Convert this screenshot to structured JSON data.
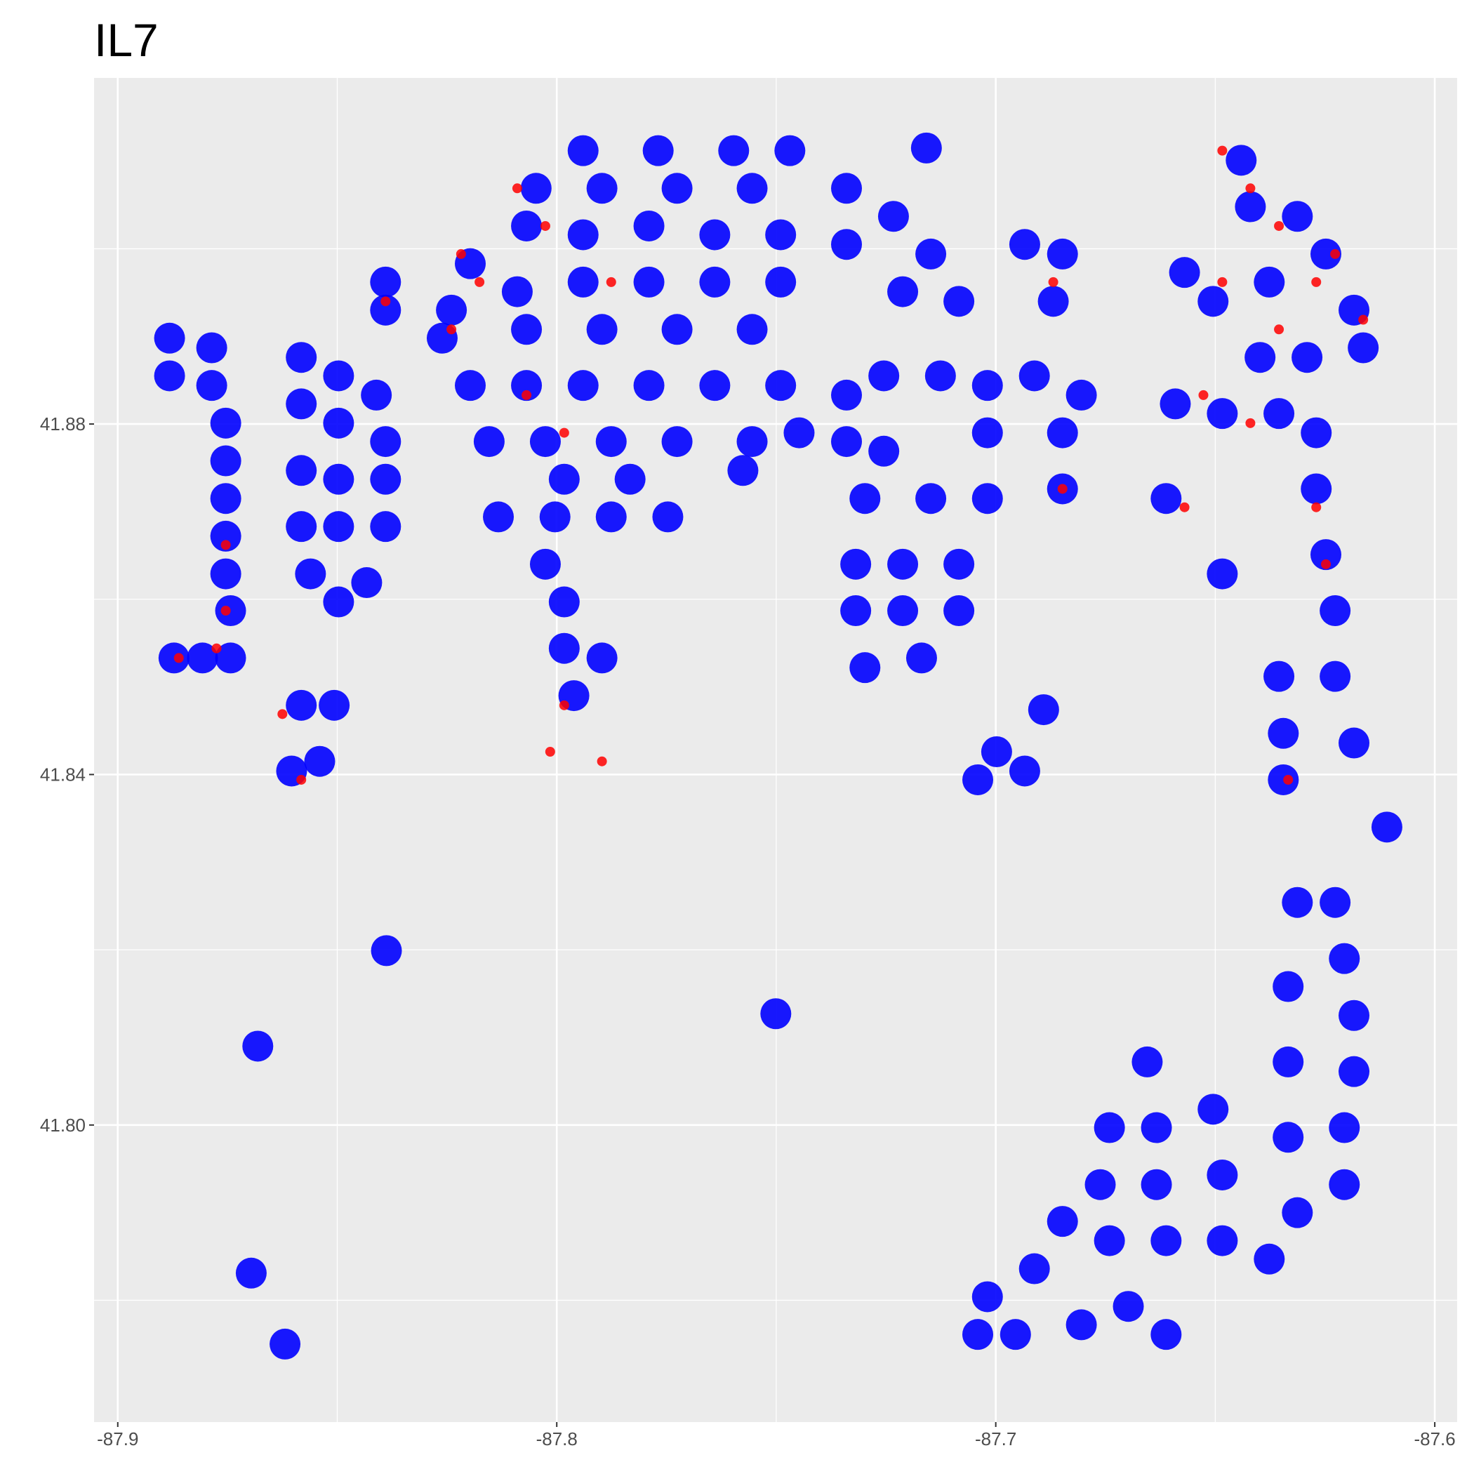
{
  "chart_data": {
    "type": "scatter",
    "title": "IL7",
    "xlim": [
      -87.9054,
      -87.5949
    ],
    "ylim": [
      41.7661,
      41.9195
    ],
    "xticks": [
      -87.9,
      -87.8,
      -87.7,
      -87.6
    ],
    "yticks": [
      {
        "value": 41.8,
        "label": "41.80"
      },
      41.84,
      41.88
    ],
    "minor_xticks": [
      -87.85,
      -87.75,
      -87.65
    ],
    "minor_yticks": [
      41.78,
      41.82,
      41.86,
      41.9
    ],
    "grid": true,
    "series": [
      {
        "color": "#0000ff",
        "x": [
          -87.8882,
          -87.8882,
          -87.8786,
          -87.8786,
          -87.8754,
          -87.8754,
          -87.8754,
          -87.8754,
          -87.8754,
          -87.8743,
          -87.8743,
          -87.8872,
          -87.8807,
          -87.8582,
          -87.8497,
          -87.8411,
          -87.8582,
          -87.8497,
          -87.839,
          -87.8582,
          -87.8497,
          -87.839,
          -87.8582,
          -87.8497,
          -87.839,
          -87.8561,
          -87.8497,
          -87.8433,
          -87.839,
          -87.839,
          -87.8582,
          -87.8507,
          -87.8604,
          -87.854,
          -87.794,
          -87.7769,
          -87.7597,
          -87.7469,
          -87.8047,
          -87.7897,
          -87.7726,
          -87.7555,
          -87.8197,
          -87.8069,
          -87.794,
          -87.779,
          -87.764,
          -87.749,
          -87.824,
          -87.809,
          -87.794,
          -87.779,
          -87.764,
          -87.749,
          -87.8261,
          -87.8069,
          -87.7897,
          -87.7726,
          -87.7555,
          -87.8197,
          -87.8069,
          -87.794,
          -87.779,
          -87.764,
          -87.749,
          -87.8154,
          -87.8026,
          -87.7876,
          -87.7726,
          -87.7555,
          -87.7448,
          -87.7983,
          -87.7833,
          -87.7576,
          -87.8133,
          -87.8004,
          -87.7876,
          -87.7747,
          -87.8026,
          -87.7983,
          -87.7983,
          -87.7897,
          -87.7961,
          -87.734,
          -87.7233,
          -87.7148,
          -87.734,
          -87.7212,
          -87.7084,
          -87.734,
          -87.7255,
          -87.7126,
          -87.7019,
          -87.6912,
          -87.6805,
          -87.7019,
          -87.6848,
          -87.734,
          -87.7255,
          -87.7298,
          -87.7148,
          -87.7019,
          -87.7319,
          -87.7212,
          -87.7084,
          -87.7319,
          -87.7212,
          -87.7084,
          -87.7298,
          -87.7169,
          -87.6934,
          -87.6848,
          -87.6869,
          -87.6848,
          -87.6441,
          -87.642,
          -87.6313,
          -87.6248,
          -87.6377,
          -87.6184,
          -87.657,
          -87.6505,
          -87.6398,
          -87.6291,
          -87.6163,
          -87.6591,
          -87.6484,
          -87.6355,
          -87.627,
          -87.6612,
          -87.6484,
          -87.627,
          -87.6248,
          -87.6227,
          -87.6355,
          -87.6345,
          -87.6345,
          -87.6227,
          -87.6184,
          -87.6109,
          -87.6313,
          -87.6227,
          -87.6334,
          -87.6206,
          -87.6184,
          -87.6184,
          -87.6206,
          -87.6206,
          -87.6334,
          -87.6334,
          -87.6313,
          -87.6655,
          -87.6741,
          -87.6634,
          -87.6505,
          -87.6762,
          -87.6634,
          -87.6484,
          -87.6741,
          -87.6612,
          -87.6484,
          -87.6377,
          -87.6698,
          -87.6612,
          -87.6805,
          -87.6912,
          -87.7019,
          -87.7041,
          -87.6955,
          -87.6848,
          -87.8388,
          -87.7501,
          -87.8696,
          -87.8619,
          -87.8681,
          -87.7158,
          -87.6934,
          -87.6998,
          -87.7041,
          -87.6891
        ],
        "y": [
          41.8898,
          41.8855,
          41.8887,
          41.8844,
          41.8801,
          41.8758,
          41.8715,
          41.8672,
          41.8629,
          41.8587,
          41.8533,
          41.8533,
          41.8533,
          41.8876,
          41.8855,
          41.8833,
          41.8823,
          41.8801,
          41.878,
          41.8747,
          41.8737,
          41.8737,
          41.8683,
          41.8683,
          41.8683,
          41.8629,
          41.8597,
          41.8619,
          41.8962,
          41.893,
          41.8479,
          41.8479,
          41.8404,
          41.8415,
          41.9112,
          41.9112,
          41.9112,
          41.9112,
          41.9069,
          41.9069,
          41.9069,
          41.9069,
          41.8983,
          41.9026,
          41.9016,
          41.9026,
          41.9016,
          41.9016,
          41.893,
          41.8951,
          41.8962,
          41.8962,
          41.8962,
          41.8962,
          41.8898,
          41.8908,
          41.8908,
          41.8908,
          41.8908,
          41.8844,
          41.8844,
          41.8844,
          41.8844,
          41.8844,
          41.8844,
          41.878,
          41.878,
          41.878,
          41.878,
          41.878,
          41.879,
          41.8737,
          41.8737,
          41.8747,
          41.8694,
          41.8694,
          41.8694,
          41.8694,
          41.864,
          41.8597,
          41.8544,
          41.8533,
          41.849,
          41.9069,
          41.9037,
          41.8994,
          41.9005,
          41.8951,
          41.894,
          41.8833,
          41.8855,
          41.8855,
          41.8844,
          41.8855,
          41.8833,
          41.879,
          41.879,
          41.878,
          41.8769,
          41.8715,
          41.8715,
          41.8715,
          41.864,
          41.864,
          41.864,
          41.8587,
          41.8587,
          41.8587,
          41.8522,
          41.8533,
          41.9005,
          41.8994,
          41.894,
          41.8726,
          41.9101,
          41.9048,
          41.9037,
          41.8994,
          41.8962,
          41.893,
          41.8973,
          41.894,
          41.8876,
          41.8876,
          41.8887,
          41.8823,
          41.8812,
          41.8812,
          41.879,
          41.8715,
          41.8629,
          41.8726,
          41.8651,
          41.8587,
          41.8512,
          41.8447,
          41.8394,
          41.8512,
          41.8436,
          41.834,
          41.8254,
          41.8254,
          41.8158,
          41.819,
          41.8125,
          41.8061,
          41.7997,
          41.7932,
          41.8072,
          41.7986,
          41.79,
          41.8072,
          41.7997,
          41.7997,
          41.8018,
          41.7932,
          41.7932,
          41.7943,
          41.7868,
          41.7868,
          41.7868,
          41.7847,
          41.7793,
          41.7761,
          41.7772,
          41.7836,
          41.7804,
          41.7761,
          41.7761,
          41.789,
          41.8199,
          41.8127,
          41.7831,
          41.775,
          41.809,
          41.9115,
          41.8404,
          41.8426,
          41.8394,
          41.8474
        ]
      },
      {
        "color": "#ff0000",
        "x": [
          -87.8218,
          -87.8176,
          -87.824,
          -87.809,
          -87.8026,
          -87.7876,
          -87.8069,
          -87.7983,
          -87.8754,
          -87.8754,
          -87.8861,
          -87.8775,
          -87.8582,
          -87.8625,
          -87.839,
          -87.6484,
          -87.642,
          -87.6355,
          -87.627,
          -87.6227,
          -87.6163,
          -87.6527,
          -87.642,
          -87.657,
          -87.627,
          -87.6248,
          -87.6334,
          -87.6869,
          -87.6848,
          -87.7983,
          -87.7897,
          -87.8015,
          -87.6355,
          -87.6484
        ],
        "y": [
          41.8994,
          41.8962,
          41.8908,
          41.9069,
          41.9026,
          41.8962,
          41.8833,
          41.879,
          41.8662,
          41.8587,
          41.8533,
          41.8544,
          41.8394,
          41.8469,
          41.894,
          41.9112,
          41.9069,
          41.9026,
          41.8962,
          41.8994,
          41.8919,
          41.8833,
          41.8801,
          41.8705,
          41.8705,
          41.864,
          41.8394,
          41.8962,
          41.8726,
          41.8479,
          41.8415,
          41.8426,
          41.8908,
          41.8962
        ]
      }
    ]
  }
}
